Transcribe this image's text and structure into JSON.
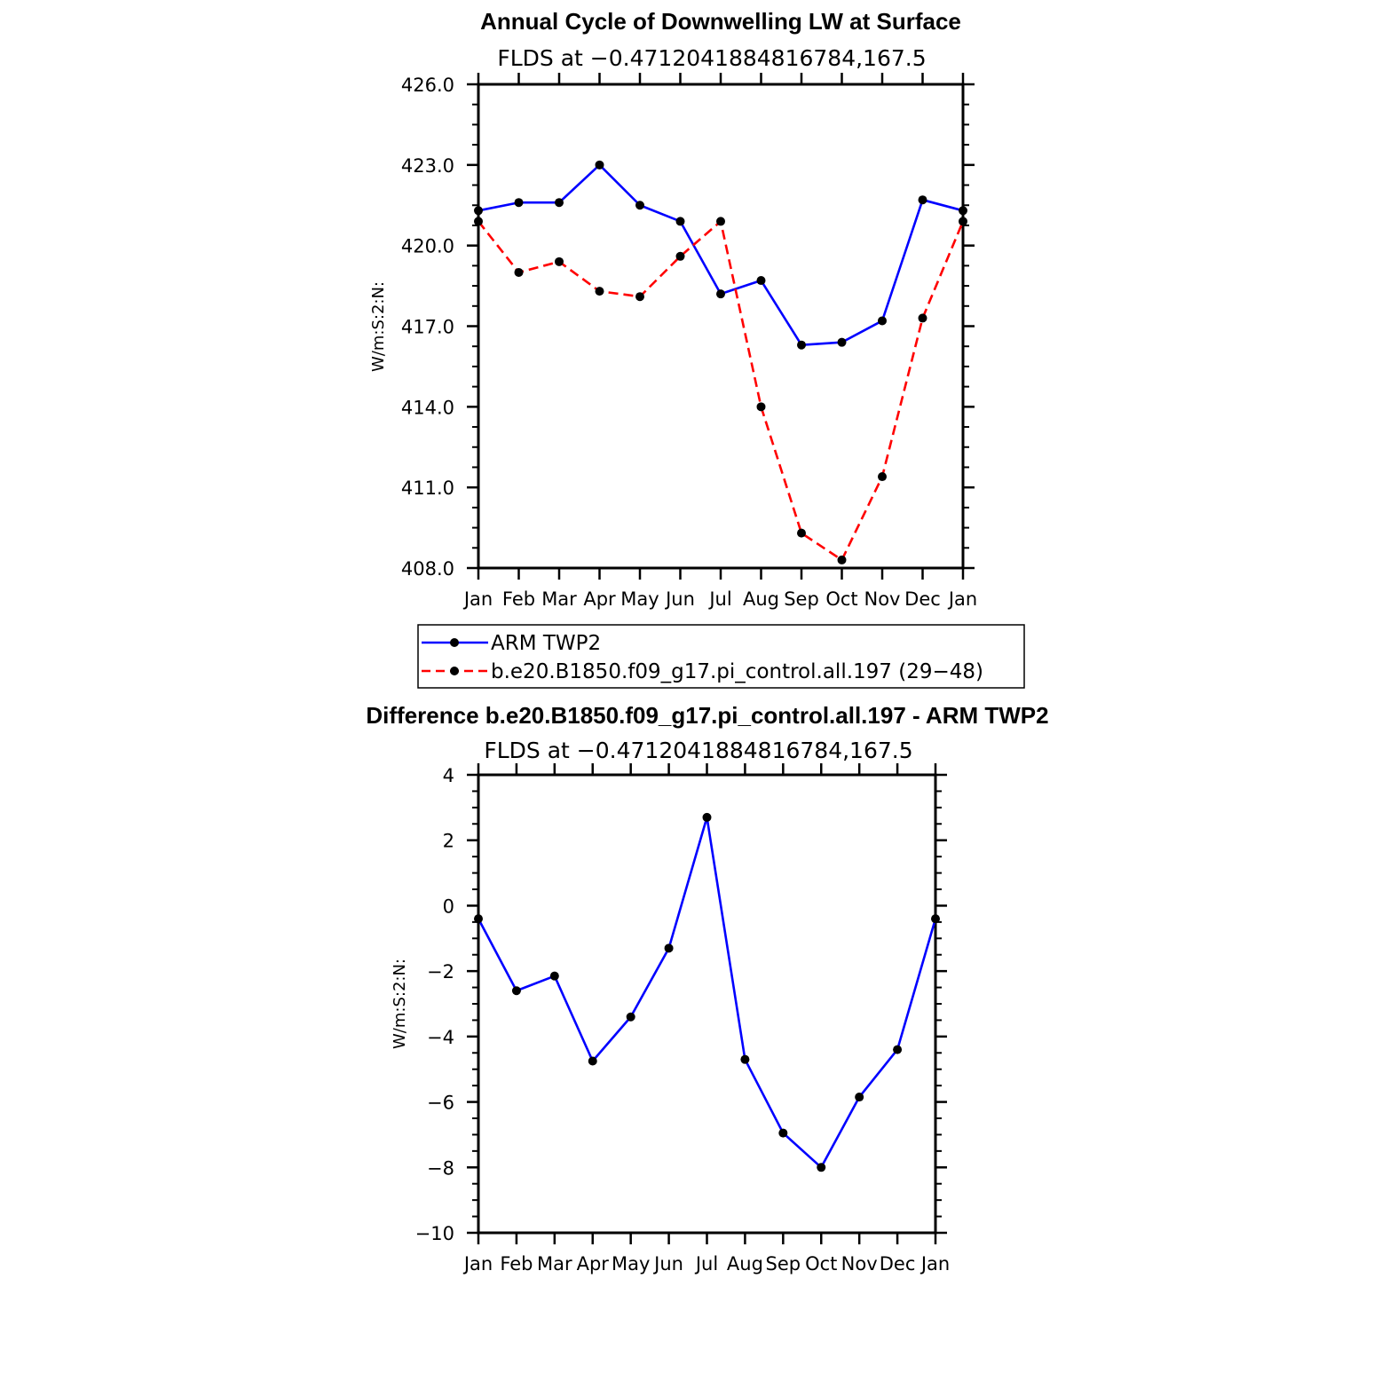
{
  "chart_data": [
    {
      "type": "line",
      "title": "Annual Cycle of Downwelling LW at Surface",
      "subtitle": "FLDS at −0.4712041884816784,167.5",
      "ylabel": "W/m:S:2:N:",
      "categories": [
        "Jan",
        "Feb",
        "Mar",
        "Apr",
        "May",
        "Jun",
        "Jul",
        "Aug",
        "Sep",
        "Oct",
        "Nov",
        "Dec",
        "Jan"
      ],
      "ylim": [
        408.0,
        426.0
      ],
      "yticks": [
        "408.0",
        "411.0",
        "414.0",
        "417.0",
        "420.0",
        "423.0",
        "426.0"
      ],
      "series": [
        {
          "name": "ARM TWP2",
          "color": "#0000ff",
          "dash": "solid",
          "values": [
            421.3,
            421.6,
            421.6,
            423.0,
            421.5,
            420.9,
            418.2,
            418.7,
            416.3,
            416.4,
            417.2,
            421.7,
            421.3
          ]
        },
        {
          "name": "b.e20.B1850.f09_g17.pi_control.all.197 (29−48)",
          "color": "#ff0000",
          "dash": "dashed",
          "values": [
            420.9,
            419.0,
            419.4,
            418.3,
            418.1,
            419.6,
            420.9,
            414.0,
            409.3,
            408.3,
            411.4,
            417.3,
            420.9
          ]
        }
      ],
      "legend": "below"
    },
    {
      "type": "line",
      "title": "Difference b.e20.B1850.f09_g17.pi_control.all.197 - ARM TWP2",
      "subtitle": "FLDS at −0.4712041884816784,167.5",
      "ylabel": "W/m:S:2:N:",
      "categories": [
        "Jan",
        "Feb",
        "Mar",
        "Apr",
        "May",
        "Jun",
        "Jul",
        "Aug",
        "Sep",
        "Oct",
        "Nov",
        "Dec",
        "Jan"
      ],
      "ylim": [
        -10,
        4
      ],
      "yticks": [
        "−10",
        "−8",
        "−6",
        "−4",
        "−2",
        "0",
        "2",
        "4"
      ],
      "series": [
        {
          "name": "",
          "color": "#0000ff",
          "dash": "solid",
          "values": [
            -0.4,
            -2.6,
            -2.15,
            -4.75,
            -3.4,
            -1.3,
            2.7,
            -4.7,
            -6.95,
            -8.0,
            -5.85,
            -4.4,
            -0.4
          ]
        }
      ]
    }
  ]
}
